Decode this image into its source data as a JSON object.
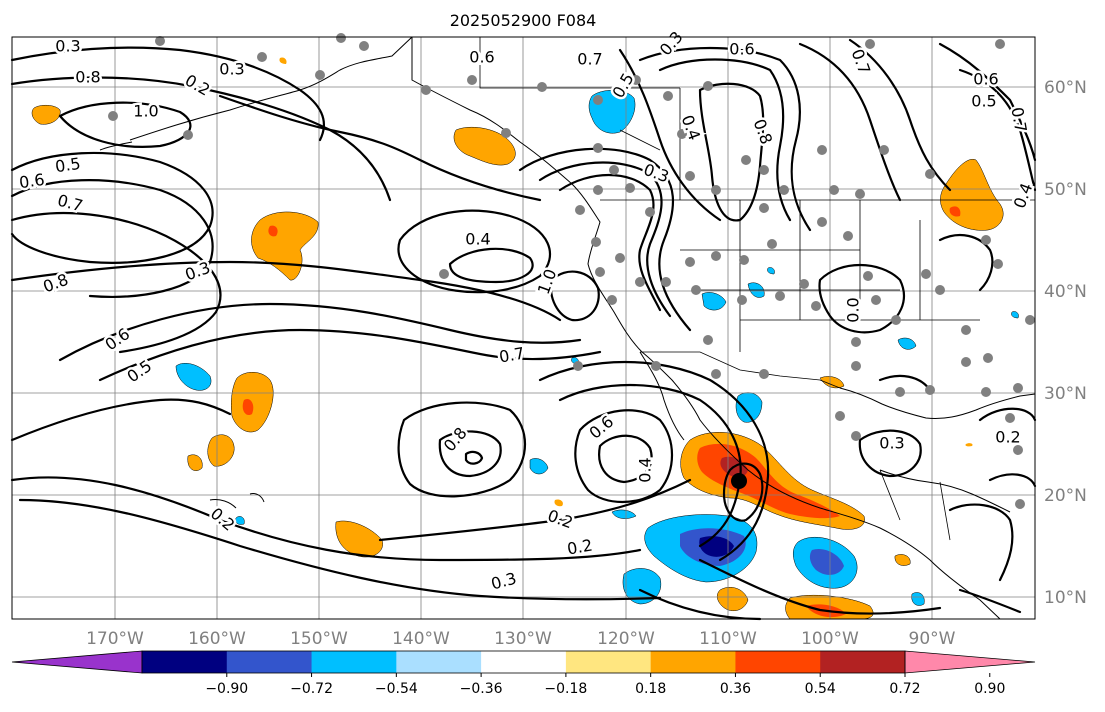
{
  "title": "2025052900 F084",
  "lon_labels": [
    "170°W",
    "160°W",
    "150°W",
    "140°W",
    "130°W",
    "120°W",
    "110°W",
    "100°W",
    "90°W"
  ],
  "lat_labels": [
    "60°N",
    "50°N",
    "40°N",
    "30°N",
    "20°N",
    "10°N"
  ],
  "colorbar": {
    "ticks": [
      "−0.90",
      "−0.72",
      "−0.54",
      "−0.36",
      "−0.18",
      "0.18",
      "0.36",
      "0.54",
      "0.72",
      "0.90"
    ],
    "colors": [
      "#9933cc",
      "#000080",
      "#3355cc",
      "#00bfff",
      "#aadfff",
      "#ffffff",
      "#ffe680",
      "#ffa500",
      "#ff4500",
      "#b22222",
      "#ff88aa"
    ]
  },
  "contour_labels": [
    "0.3",
    "0.8",
    "1.0",
    "0.5",
    "0.6",
    "0.7",
    "0.8",
    "0.3",
    "0.6",
    "0.5",
    "0.3",
    "0.2",
    "0.4",
    "0.6",
    "0.7",
    "0.3",
    "0.5",
    "0.4",
    "0.8",
    "1.0",
    "0.3",
    "0.6",
    "0.7",
    "0.6",
    "0.5",
    "0.7",
    "0.4",
    "0.7",
    "0.8",
    "0.6",
    "0.4",
    "0.2",
    "0.2",
    "0.3",
    "0.2",
    "0.3",
    "0.2",
    "0.0"
  ],
  "storm_marker": "storm-center",
  "colors": {
    "positive": "#ffa500",
    "strong_positive": "#ff4500",
    "negative": "#00bfff",
    "strong_negative": "#3355cc",
    "max_negative": "#000080",
    "station": "#808080"
  }
}
